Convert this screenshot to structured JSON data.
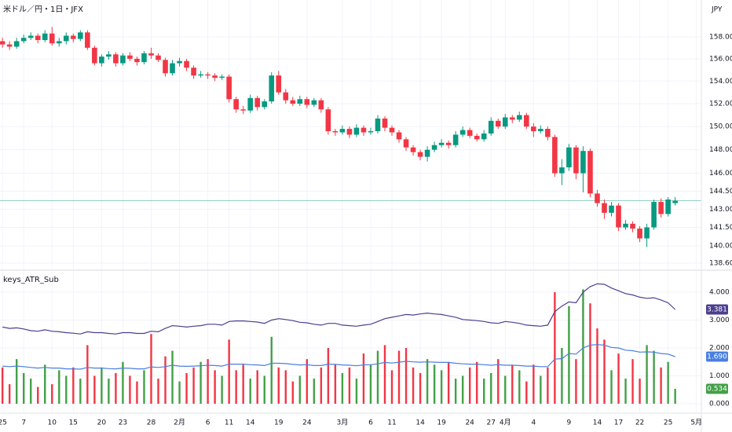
{
  "header": {
    "title": "米ドル／円・1日・JFX",
    "currency": "JPY"
  },
  "chart_data": [
    {
      "type": "candlestick",
      "log_scale": true,
      "grid": true,
      "up_color": "#089981",
      "down_color": "#f23645",
      "ylim": [
        138.1,
        161.4
      ],
      "yticks": [
        {
          "value": 158,
          "label": "158.000"
        },
        {
          "value": 156,
          "label": "156.000"
        },
        {
          "value": 154,
          "label": "154.000"
        },
        {
          "value": 152,
          "label": "152.000"
        },
        {
          "value": 150,
          "label": "150.000"
        },
        {
          "value": 148,
          "label": "148.000"
        },
        {
          "value": 146,
          "label": "146.000"
        },
        {
          "value": 144.5,
          "label": "144.500"
        },
        {
          "value": 143,
          "label": "143.000"
        },
        {
          "value": 141.5,
          "label": "141.500"
        },
        {
          "value": 140,
          "label": "140.000"
        },
        {
          "value": 138.6,
          "label": "138.600"
        }
      ],
      "xlim": [
        -0.35,
        98.7
      ],
      "xticks": [
        {
          "value": 0,
          "label": "25"
        },
        {
          "value": 3,
          "label": "7"
        },
        {
          "value": 7,
          "label": "10"
        },
        {
          "value": 10,
          "label": "15"
        },
        {
          "value": 14,
          "label": "20"
        },
        {
          "value": 17,
          "label": "23"
        },
        {
          "value": 21,
          "label": "28"
        },
        {
          "value": 25,
          "label": "2月"
        },
        {
          "value": 29,
          "label": "6"
        },
        {
          "value": 32,
          "label": "11"
        },
        {
          "value": 35,
          "label": "14"
        },
        {
          "value": 39,
          "label": "19"
        },
        {
          "value": 43,
          "label": "24"
        },
        {
          "value": 48,
          "label": "3月"
        },
        {
          "value": 52,
          "label": "6"
        },
        {
          "value": 55,
          "label": "11"
        },
        {
          "value": 59,
          "label": "14"
        },
        {
          "value": 62,
          "label": "19"
        },
        {
          "value": 66,
          "label": "24"
        },
        {
          "value": 69,
          "label": "27"
        },
        {
          "value": 71,
          "label": "4月"
        },
        {
          "value": 75,
          "label": "4"
        },
        {
          "value": 80,
          "label": "9"
        },
        {
          "value": 84,
          "label": "14"
        },
        {
          "value": 87,
          "label": "17"
        },
        {
          "value": 90,
          "label": "22"
        },
        {
          "value": 94,
          "label": "25"
        },
        {
          "value": 98,
          "label": "5月"
        }
      ],
      "ohlc": [
        [
          157.6,
          157.9,
          157.0,
          157.3
        ],
        [
          157.3,
          157.6,
          156.8,
          157.1
        ],
        [
          157.1,
          157.9,
          156.9,
          157.6
        ],
        [
          157.6,
          158.2,
          157.4,
          157.9
        ],
        [
          157.9,
          158.4,
          157.7,
          158.1
        ],
        [
          158.1,
          158.3,
          157.4,
          157.7
        ],
        [
          157.7,
          158.6,
          157.5,
          158.3
        ],
        [
          158.3,
          158.9,
          157.2,
          157.4
        ],
        [
          157.4,
          157.9,
          157.1,
          157.6
        ],
        [
          157.6,
          158.4,
          157.3,
          158.1
        ],
        [
          158.1,
          158.3,
          157.5,
          157.8
        ],
        [
          157.8,
          158.6,
          157.6,
          158.4
        ],
        [
          158.4,
          158.6,
          156.8,
          157.0
        ],
        [
          157.0,
          157.2,
          155.4,
          155.6
        ],
        [
          155.6,
          156.4,
          155.3,
          156.2
        ],
        [
          156.2,
          156.7,
          155.9,
          156.4
        ],
        [
          156.4,
          156.6,
          155.3,
          155.6
        ],
        [
          155.6,
          156.5,
          155.4,
          156.3
        ],
        [
          156.3,
          156.6,
          155.8,
          156.0
        ],
        [
          156.0,
          156.2,
          155.4,
          155.7
        ],
        [
          155.7,
          156.7,
          155.5,
          156.5
        ],
        [
          156.5,
          157.0,
          156.0,
          156.3
        ],
        [
          156.3,
          156.5,
          155.7,
          155.9
        ],
        [
          155.9,
          156.1,
          154.4,
          154.7
        ],
        [
          154.7,
          155.9,
          154.5,
          155.6
        ],
        [
          155.6,
          156.1,
          155.3,
          155.8
        ],
        [
          155.8,
          156.0,
          154.9,
          155.2
        ],
        [
          155.2,
          155.4,
          154.2,
          154.5
        ],
        [
          154.5,
          154.9,
          154.3,
          154.6
        ],
        [
          154.6,
          154.8,
          154.2,
          154.5
        ],
        [
          154.5,
          154.7,
          154.0,
          154.3
        ],
        [
          154.3,
          154.6,
          154.1,
          154.4
        ],
        [
          154.4,
          154.6,
          152.1,
          152.4
        ],
        [
          152.4,
          152.6,
          151.2,
          151.5
        ],
        [
          151.5,
          151.8,
          151.1,
          151.4
        ],
        [
          151.4,
          152.8,
          151.2,
          152.5
        ],
        [
          152.5,
          152.7,
          151.4,
          151.7
        ],
        [
          151.7,
          152.4,
          151.5,
          152.2
        ],
        [
          152.2,
          154.8,
          152.0,
          154.5
        ],
        [
          154.5,
          154.9,
          152.8,
          153.0
        ],
        [
          153.0,
          153.3,
          152.0,
          152.3
        ],
        [
          152.3,
          152.6,
          151.8,
          152.0
        ],
        [
          152.0,
          152.7,
          151.8,
          152.4
        ],
        [
          152.4,
          152.6,
          151.6,
          151.9
        ],
        [
          151.9,
          152.5,
          151.7,
          152.3
        ],
        [
          152.3,
          152.5,
          151.2,
          151.5
        ],
        [
          151.5,
          151.7,
          149.3,
          149.6
        ],
        [
          149.6,
          149.8,
          149.2,
          149.5
        ],
        [
          149.5,
          150.1,
          149.3,
          149.8
        ],
        [
          149.8,
          150.0,
          149.0,
          149.3
        ],
        [
          149.3,
          150.2,
          149.1,
          149.9
        ],
        [
          149.9,
          150.1,
          149.2,
          149.5
        ],
        [
          149.5,
          149.9,
          149.3,
          149.6
        ],
        [
          149.6,
          151.0,
          149.4,
          150.7
        ],
        [
          150.7,
          150.9,
          149.6,
          149.9
        ],
        [
          149.9,
          150.1,
          149.2,
          149.5
        ],
        [
          149.5,
          149.7,
          148.6,
          148.9
        ],
        [
          148.9,
          149.1,
          147.9,
          148.2
        ],
        [
          148.2,
          148.4,
          147.5,
          147.8
        ],
        [
          147.8,
          148.0,
          147.1,
          147.4
        ],
        [
          147.4,
          148.3,
          147.0,
          148.0
        ],
        [
          148.0,
          148.7,
          147.8,
          148.4
        ],
        [
          148.4,
          148.9,
          148.2,
          148.6
        ],
        [
          148.6,
          148.8,
          148.1,
          148.4
        ],
        [
          148.4,
          149.6,
          148.2,
          149.3
        ],
        [
          149.3,
          150.0,
          149.1,
          149.7
        ],
        [
          149.7,
          149.9,
          149.0,
          149.2
        ],
        [
          149.2,
          149.4,
          148.7,
          148.9
        ],
        [
          148.9,
          149.7,
          148.7,
          149.4
        ],
        [
          149.4,
          150.8,
          149.2,
          150.5
        ],
        [
          150.5,
          150.7,
          149.8,
          150.0
        ],
        [
          150.0,
          151.1,
          149.8,
          150.8
        ],
        [
          150.8,
          151.0,
          150.3,
          150.6
        ],
        [
          150.6,
          151.3,
          150.4,
          151.0
        ],
        [
          151.0,
          151.2,
          149.8,
          150.0
        ],
        [
          150.0,
          150.3,
          149.1,
          149.6
        ],
        [
          149.6,
          150.1,
          149.4,
          149.8
        ],
        [
          149.8,
          150.0,
          148.8,
          149.1
        ],
        [
          149.1,
          149.3,
          145.7,
          146.0
        ],
        [
          146.0,
          147.2,
          145.0,
          146.5
        ],
        [
          146.5,
          148.5,
          146.2,
          148.2
        ],
        [
          148.2,
          148.4,
          145.5,
          146.0
        ],
        [
          146.0,
          148.3,
          144.4,
          147.9
        ],
        [
          147.9,
          148.1,
          144.0,
          144.3
        ],
        [
          144.3,
          144.6,
          143.2,
          143.5
        ],
        [
          143.5,
          143.8,
          142.2,
          142.7
        ],
        [
          142.7,
          143.6,
          142.4,
          143.3
        ],
        [
          143.3,
          143.5,
          141.2,
          141.5
        ],
        [
          141.5,
          142.1,
          141.3,
          141.8
        ],
        [
          141.8,
          142.0,
          141.1,
          141.4
        ],
        [
          141.4,
          141.6,
          140.3,
          140.6
        ],
        [
          140.6,
          141.8,
          139.9,
          141.5
        ],
        [
          141.5,
          143.8,
          141.3,
          143.6
        ],
        [
          143.6,
          143.9,
          142.3,
          142.6
        ],
        [
          142.6,
          144.0,
          142.4,
          143.8
        ],
        [
          143.5,
          144.0,
          143.3,
          143.7
        ]
      ]
    },
    {
      "type": "bar_line",
      "title": "keys_ATR_Sub",
      "grid": true,
      "ylim": [
        -0.31,
        4.76
      ],
      "yticks": [
        {
          "value": 4,
          "label": "4.000"
        },
        {
          "value": 3,
          "label": "3.000"
        },
        {
          "value": 2,
          "label": "2.000"
        },
        {
          "value": 1,
          "label": "1.000"
        },
        {
          "value": 0,
          "label": "0.000"
        }
      ],
      "series": [
        {
          "kind": "bar",
          "color": "#43a047",
          "down_color": "#f23645",
          "values": [
            1.3,
            0.7,
            1.6,
            1.1,
            0.9,
            0.6,
            1.4,
            0.7,
            1.2,
            1.0,
            1.3,
            0.9,
            2.1,
            1.0,
            1.3,
            0.9,
            1.1,
            1.5,
            1.0,
            0.8,
            1.2,
            2.5,
            0.9,
            1.7,
            1.9,
            0.8,
            1.1,
            1.3,
            1.5,
            1.6,
            1.2,
            1.0,
            2.3,
            1.2,
            1.4,
            0.9,
            1.2,
            1.0,
            2.4,
            1.3,
            1.2,
            0.8,
            1.0,
            1.6,
            0.9,
            1.3,
            2.0,
            1.4,
            1.1,
            1.3,
            0.9,
            1.8,
            1.4,
            1.9,
            2.1,
            1.2,
            1.9,
            2.0,
            1.3,
            1.1,
            1.6,
            1.4,
            1.2,
            1.5,
            0.9,
            1.0,
            1.3,
            1.5,
            0.9,
            1.1,
            1.6,
            1.0,
            1.4,
            1.2,
            0.8,
            1.4,
            1.0,
            1.3,
            4.0,
            2.0,
            3.5,
            1.6,
            4.1,
            3.6,
            2.7,
            2.3,
            1.2,
            1.8,
            0.9,
            1.6,
            0.9,
            2.1,
            1.9,
            1.3,
            1.5,
            0.534
          ]
        },
        {
          "kind": "line",
          "color": "#4b3f8f",
          "values": [
            2.75,
            2.7,
            2.72,
            2.68,
            2.62,
            2.6,
            2.65,
            2.6,
            2.58,
            2.55,
            2.53,
            2.5,
            2.58,
            2.55,
            2.55,
            2.52,
            2.5,
            2.55,
            2.55,
            2.52,
            2.52,
            2.6,
            2.58,
            2.7,
            2.8,
            2.78,
            2.75,
            2.78,
            2.8,
            2.85,
            2.85,
            2.82,
            2.95,
            2.97,
            2.97,
            2.95,
            2.93,
            2.88,
            3.0,
            3.05,
            3.02,
            2.98,
            2.92,
            2.9,
            2.85,
            2.82,
            2.88,
            2.88,
            2.82,
            2.8,
            2.78,
            2.82,
            2.85,
            2.95,
            3.05,
            3.1,
            3.15,
            3.2,
            3.18,
            3.22,
            3.25,
            3.22,
            3.2,
            3.15,
            3.1,
            3.02,
            3.0,
            2.98,
            2.95,
            2.9,
            2.88,
            2.95,
            2.92,
            2.88,
            2.82,
            2.8,
            2.78,
            2.82,
            3.3,
            3.5,
            3.65,
            3.62,
            4.0,
            4.2,
            4.3,
            4.28,
            4.15,
            4.05,
            3.95,
            3.9,
            3.82,
            3.78,
            3.8,
            3.72,
            3.62,
            3.381
          ]
        },
        {
          "kind": "line",
          "color": "#4a7fe0",
          "last_label": "1.690",
          "values": [
            1.35,
            1.33,
            1.35,
            1.33,
            1.3,
            1.28,
            1.3,
            1.28,
            1.28,
            1.25,
            1.25,
            1.24,
            1.3,
            1.28,
            1.28,
            1.26,
            1.25,
            1.28,
            1.27,
            1.25,
            1.25,
            1.32,
            1.3,
            1.33,
            1.38,
            1.35,
            1.34,
            1.35,
            1.36,
            1.38,
            1.37,
            1.35,
            1.42,
            1.42,
            1.42,
            1.4,
            1.39,
            1.37,
            1.45,
            1.45,
            1.44,
            1.41,
            1.39,
            1.4,
            1.37,
            1.37,
            1.42,
            1.41,
            1.39,
            1.38,
            1.36,
            1.39,
            1.4,
            1.43,
            1.48,
            1.46,
            1.49,
            1.52,
            1.5,
            1.49,
            1.5,
            1.49,
            1.48,
            1.48,
            1.45,
            1.43,
            1.42,
            1.42,
            1.4,
            1.38,
            1.4,
            1.38,
            1.38,
            1.37,
            1.35,
            1.35,
            1.33,
            1.33,
            1.6,
            1.62,
            1.8,
            1.78,
            2.0,
            2.1,
            2.12,
            2.1,
            2.02,
            2.0,
            1.92,
            1.9,
            1.85,
            1.86,
            1.85,
            1.8,
            1.78,
            1.69
          ]
        }
      ]
    }
  ]
}
